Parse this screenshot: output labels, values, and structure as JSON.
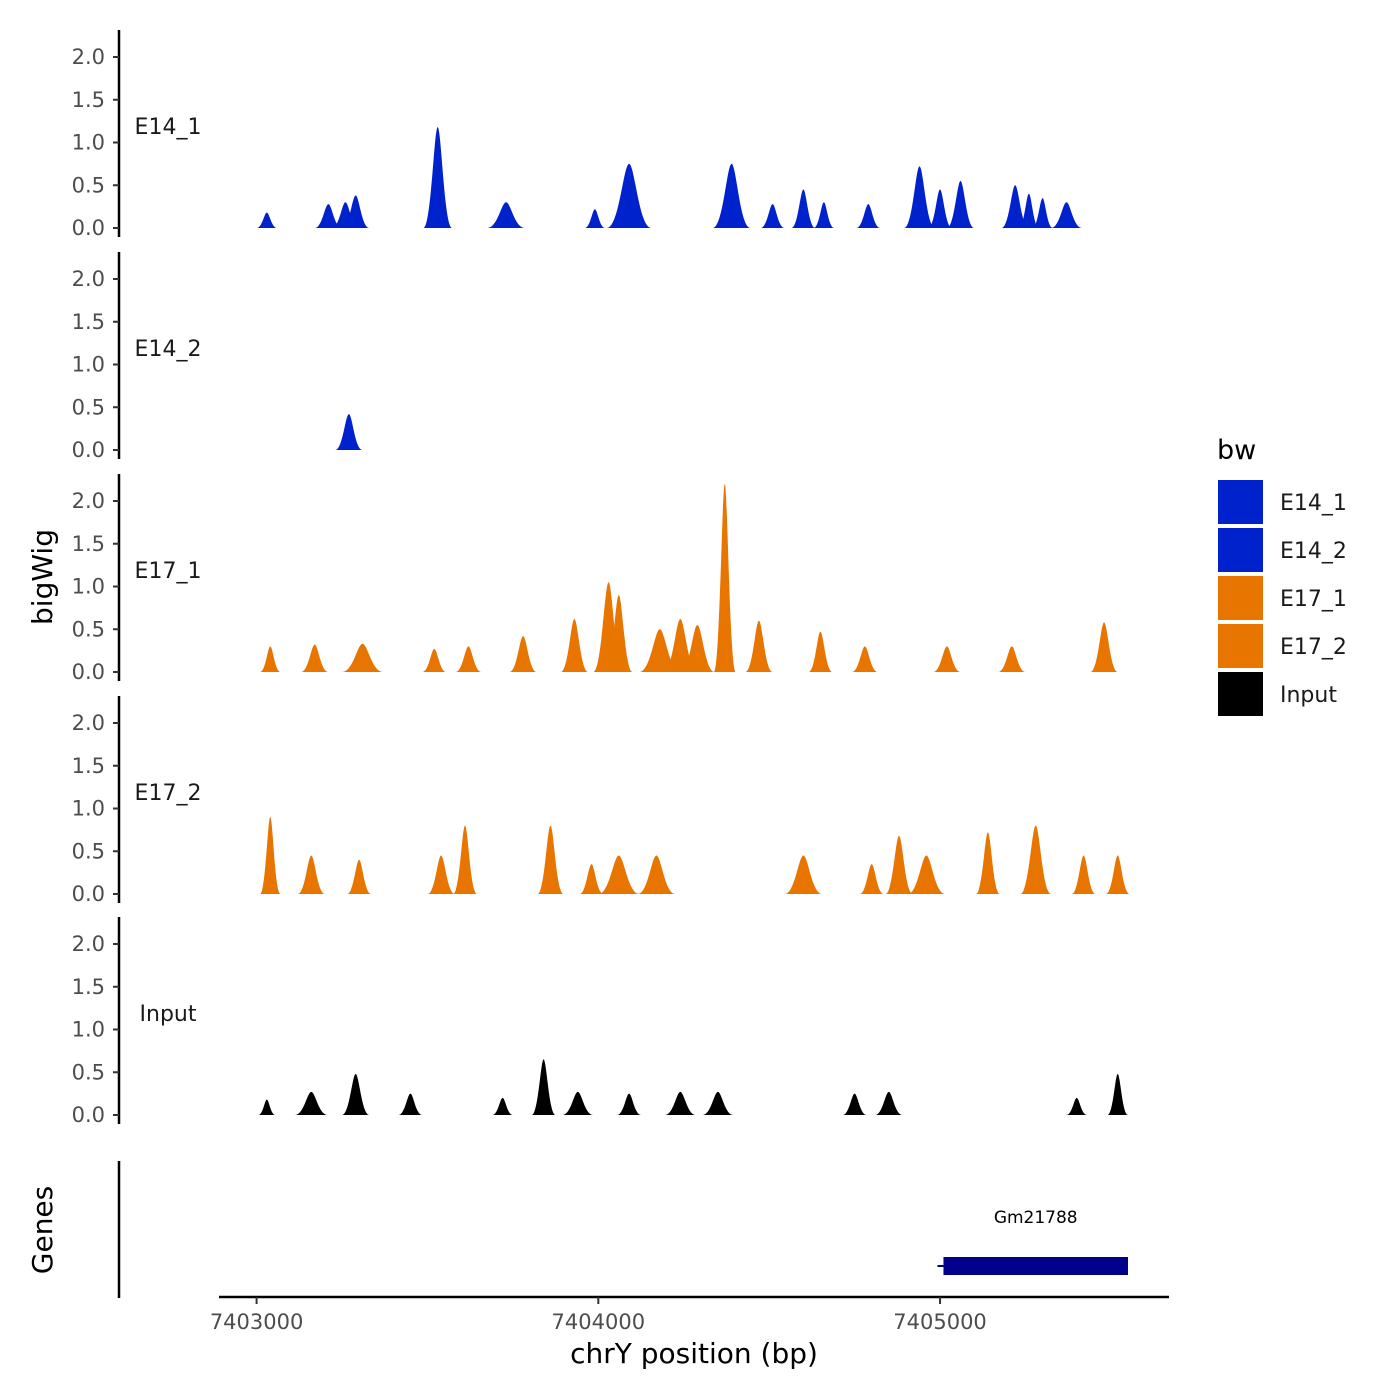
{
  "chart_data": {
    "type": "area",
    "title": "",
    "xlabel": "chrY position (bp)",
    "ylabel": "bigWig",
    "genes_label": "Genes",
    "x_ticks": [
      7403000,
      7404000,
      7405000
    ],
    "x_tick_labels": [
      "7403000",
      "7404000",
      "7405000"
    ],
    "xlim": [
      7402890,
      7405670
    ],
    "ylim": [
      0,
      2.3
    ],
    "y_ticks": [
      0,
      0.5,
      1,
      1.5,
      2
    ],
    "y_tick_labels": [
      "0.0",
      "0.5",
      "1.0",
      "1.5",
      "2.0"
    ],
    "legend": {
      "title": "bw",
      "position": "right",
      "entries": [
        {
          "name": "E14_1",
          "color": "#0022cc"
        },
        {
          "name": "E14_2",
          "color": "#0022cc"
        },
        {
          "name": "E17_1",
          "color": "#e87500"
        },
        {
          "name": "E17_2",
          "color": "#e87500"
        },
        {
          "name": "Input",
          "color": "#000000"
        }
      ]
    },
    "series": [
      {
        "name": "E14_1",
        "color": "#0022cc",
        "peaks": [
          [
            7403030,
            0.18,
            30
          ],
          [
            7403210,
            0.28,
            40
          ],
          [
            7403260,
            0.3,
            40
          ],
          [
            7403290,
            0.38,
            40
          ],
          [
            7403530,
            1.18,
            42
          ],
          [
            7403730,
            0.3,
            55
          ],
          [
            7403990,
            0.22,
            30
          ],
          [
            7404090,
            0.75,
            65
          ],
          [
            7404390,
            0.75,
            55
          ],
          [
            7404510,
            0.28,
            35
          ],
          [
            7404600,
            0.45,
            35
          ],
          [
            7404660,
            0.3,
            30
          ],
          [
            7404790,
            0.28,
            35
          ],
          [
            7404940,
            0.72,
            45
          ],
          [
            7405000,
            0.45,
            35
          ],
          [
            7405060,
            0.55,
            40
          ],
          [
            7405220,
            0.5,
            40
          ],
          [
            7405260,
            0.4,
            30
          ],
          [
            7405300,
            0.35,
            30
          ],
          [
            7405370,
            0.3,
            45
          ]
        ]
      },
      {
        "name": "E14_2",
        "color": "#0022cc",
        "peaks": [
          [
            7403270,
            0.42,
            40
          ]
        ]
      },
      {
        "name": "E17_1",
        "color": "#e87500",
        "peaks": [
          [
            7403040,
            0.3,
            30
          ],
          [
            7403170,
            0.32,
            40
          ],
          [
            7403310,
            0.33,
            60
          ],
          [
            7403520,
            0.27,
            35
          ],
          [
            7403620,
            0.3,
            38
          ],
          [
            7403780,
            0.42,
            40
          ],
          [
            7403930,
            0.62,
            40
          ],
          [
            7404030,
            1.05,
            45
          ],
          [
            7404060,
            0.9,
            40
          ],
          [
            7404180,
            0.5,
            60
          ],
          [
            7404240,
            0.62,
            50
          ],
          [
            7404290,
            0.55,
            50
          ],
          [
            7404370,
            2.2,
            32
          ],
          [
            7404470,
            0.6,
            40
          ],
          [
            7404650,
            0.47,
            35
          ],
          [
            7404780,
            0.3,
            38
          ],
          [
            7405020,
            0.3,
            40
          ],
          [
            7405210,
            0.3,
            40
          ],
          [
            7405480,
            0.58,
            40
          ]
        ]
      },
      {
        "name": "E17_2",
        "color": "#e87500",
        "peaks": [
          [
            7403040,
            0.9,
            30
          ],
          [
            7403160,
            0.45,
            40
          ],
          [
            7403300,
            0.4,
            35
          ],
          [
            7403540,
            0.45,
            40
          ],
          [
            7403610,
            0.8,
            35
          ],
          [
            7403860,
            0.8,
            38
          ],
          [
            7403980,
            0.35,
            35
          ],
          [
            7404060,
            0.45,
            60
          ],
          [
            7404170,
            0.45,
            55
          ],
          [
            7404600,
            0.45,
            55
          ],
          [
            7404800,
            0.35,
            35
          ],
          [
            7404880,
            0.68,
            40
          ],
          [
            7404960,
            0.45,
            55
          ],
          [
            7405140,
            0.72,
            35
          ],
          [
            7405280,
            0.8,
            45
          ],
          [
            7405420,
            0.45,
            35
          ],
          [
            7405520,
            0.45,
            35
          ]
        ]
      },
      {
        "name": "Input",
        "color": "#000000",
        "peaks": [
          [
            7403030,
            0.18,
            25
          ],
          [
            7403160,
            0.27,
            48
          ],
          [
            7403290,
            0.48,
            40
          ],
          [
            7403450,
            0.25,
            35
          ],
          [
            7403720,
            0.2,
            30
          ],
          [
            7403840,
            0.65,
            35
          ],
          [
            7403940,
            0.27,
            45
          ],
          [
            7404090,
            0.25,
            35
          ],
          [
            7404240,
            0.27,
            45
          ],
          [
            7404350,
            0.27,
            45
          ],
          [
            7404750,
            0.25,
            35
          ],
          [
            7404850,
            0.27,
            40
          ],
          [
            7405400,
            0.2,
            30
          ],
          [
            7405520,
            0.48,
            30
          ]
        ]
      }
    ],
    "genes": [
      {
        "name": "Gm21788",
        "start": 7405010,
        "end": 7405550,
        "color": "#00008b"
      }
    ]
  }
}
